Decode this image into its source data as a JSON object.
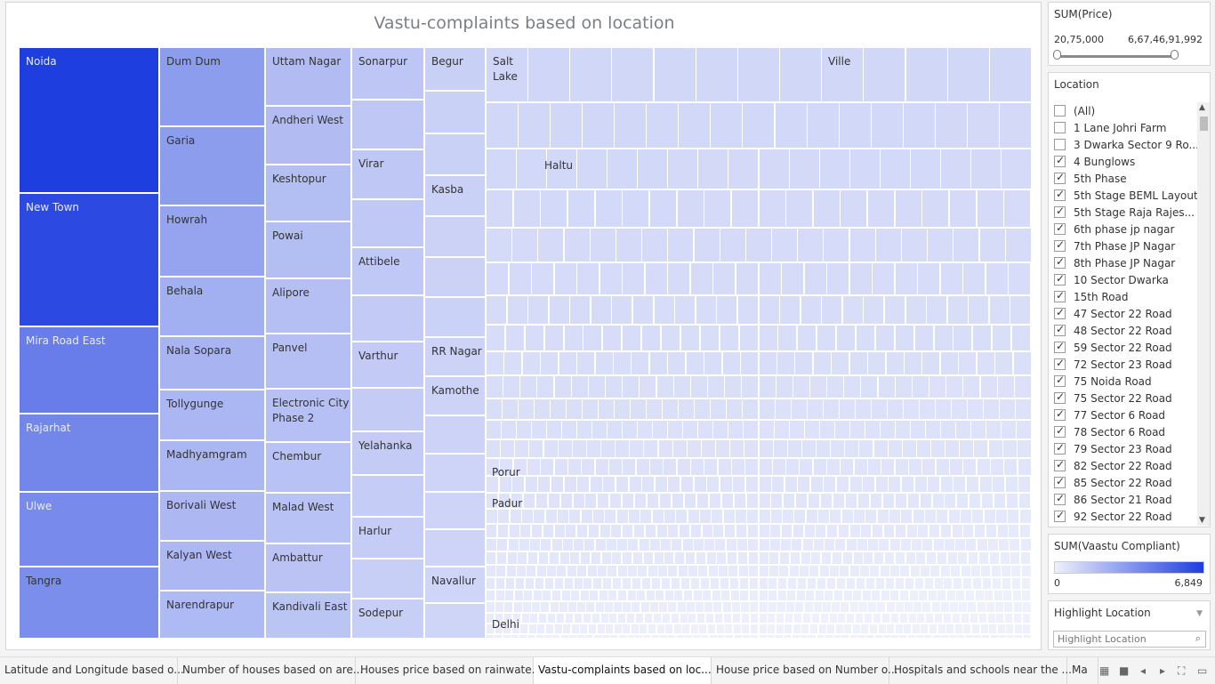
{
  "chart_data": {
    "type": "treemap",
    "title": "Vastu-complaints based on location",
    "color_measure": "SUM(Vaastu Compliant)",
    "color_range": [
      0,
      6849
    ],
    "colors": {
      "low": "#eef0fb",
      "high": "#1e3ee0"
    },
    "columns": [
      {
        "tiles": [
          {
            "name": "Noida",
            "value": 6849
          },
          {
            "name": "New Town",
            "value": 6300
          },
          {
            "name": "Mira Road East",
            "value": 4100
          },
          {
            "name": "Rajarhat",
            "value": 3700
          },
          {
            "name": "Ulwe",
            "value": 3500
          },
          {
            "name": "Tangra",
            "value": 3400
          }
        ]
      },
      {
        "tiles": [
          {
            "name": "Dum Dum",
            "value": 2800
          },
          {
            "name": "Garia",
            "value": 2800
          },
          {
            "name": "Howrah",
            "value": 2500
          },
          {
            "name": "Behala",
            "value": 2100
          },
          {
            "name": "Nala Sopara",
            "value": 1900
          },
          {
            "name": "Tollygunge",
            "value": 1800
          },
          {
            "name": "Madhyamgram",
            "value": 1800
          },
          {
            "name": "Borivali West",
            "value": 1750
          },
          {
            "name": "Kalyan West",
            "value": 1750
          },
          {
            "name": "Narendrapur",
            "value": 1700
          }
        ]
      },
      {
        "tiles": [
          {
            "name": "Uttam Nagar",
            "value": 1600
          },
          {
            "name": "Andheri West",
            "value": 1600
          },
          {
            "name": "Keshtopur",
            "value": 1550
          },
          {
            "name": "Powai",
            "value": 1550
          },
          {
            "name": "Alipore",
            "value": 1500
          },
          {
            "name": "Panvel",
            "value": 1500
          },
          {
            "name": "Electronic City Phase 2",
            "value": 1450
          },
          {
            "name": "Chembur",
            "value": 1400
          },
          {
            "name": "Malad West",
            "value": 1400
          },
          {
            "name": "Ambattur",
            "value": 1350
          },
          {
            "name": "Kandivali East",
            "value": 1300
          }
        ]
      },
      {
        "tiles": [
          {
            "name": "Sonarpur",
            "value": 1250
          },
          {
            "name": "",
            "value": 1200
          },
          {
            "name": "Virar",
            "value": 1200
          },
          {
            "name": "",
            "value": 1150
          },
          {
            "name": "Attibele",
            "value": 1150
          },
          {
            "name": "",
            "value": 1100
          },
          {
            "name": "Varthur",
            "value": 1100
          },
          {
            "name": "",
            "value": 1050
          },
          {
            "name": "Yelahanka",
            "value": 1050
          },
          {
            "name": "",
            "value": 1000
          },
          {
            "name": "Harlur",
            "value": 1000
          },
          {
            "name": "",
            "value": 950
          },
          {
            "name": "Sodepur",
            "value": 950
          }
        ]
      },
      {
        "tiles": [
          {
            "name": "Begur",
            "value": 900
          },
          {
            "name": "",
            "value": 880
          },
          {
            "name": "",
            "value": 870
          },
          {
            "name": "Kasba",
            "value": 860
          },
          {
            "name": "",
            "value": 850
          },
          {
            "name": "",
            "value": 840
          },
          {
            "name": "",
            "value": 830
          },
          {
            "name": "RR Nagar",
            "value": 820
          },
          {
            "name": "Kamothe",
            "value": 810
          },
          {
            "name": "",
            "value": 800
          },
          {
            "name": "",
            "value": 790
          },
          {
            "name": "",
            "value": 780
          },
          {
            "name": "",
            "value": 770
          },
          {
            "name": "Navallur",
            "value": 760
          },
          {
            "name": "",
            "value": 750
          }
        ]
      }
    ],
    "other_labels": [
      "Salt Lake",
      "Ville",
      "Haltu",
      "Porur",
      "Padur",
      "Delhi"
    ]
  },
  "filters": {
    "price": {
      "title": "SUM(Price)",
      "min": "20,75,000",
      "max": "6,67,46,91,992"
    },
    "location": {
      "title": "Location",
      "items": [
        {
          "label": "(All)",
          "checked": false
        },
        {
          "label": "1 Lane Johri Farm",
          "checked": false
        },
        {
          "label": "3 Dwarka Sector 9 Ro...",
          "checked": false
        },
        {
          "label": "4 Bunglows",
          "checked": true
        },
        {
          "label": "5th Phase",
          "checked": true
        },
        {
          "label": "5th Stage BEML Layout",
          "checked": true
        },
        {
          "label": "5th Stage Raja Rajes...",
          "checked": true
        },
        {
          "label": "6th phase jp nagar",
          "checked": true
        },
        {
          "label": "7th Phase JP Nagar",
          "checked": true
        },
        {
          "label": "8th Phase JP Nagar",
          "checked": true
        },
        {
          "label": "10 Sector Dwarka",
          "checked": true
        },
        {
          "label": "15th Road",
          "checked": true
        },
        {
          "label": "47 Sector 22 Road",
          "checked": true
        },
        {
          "label": "48 Sector 22 Road",
          "checked": true
        },
        {
          "label": "59 Sector 22 Road",
          "checked": true
        },
        {
          "label": "72 Sector 23 Road",
          "checked": true
        },
        {
          "label": "75 Noida Road",
          "checked": true
        },
        {
          "label": "75 Sector 22 Road",
          "checked": true
        },
        {
          "label": "77 Sector 6 Road",
          "checked": true
        },
        {
          "label": "78 Sector 6 Road",
          "checked": true
        },
        {
          "label": "79 Sector 23 Road",
          "checked": true
        },
        {
          "label": "82 Sector 22 Road",
          "checked": true
        },
        {
          "label": "85 Sector 22 Road",
          "checked": true
        },
        {
          "label": "86 Sector 21 Road",
          "checked": true
        },
        {
          "label": "92 Sector 22 Road",
          "checked": true
        }
      ]
    },
    "color_legend": {
      "title": "SUM(Vaastu Compliant)",
      "min": "0",
      "max": "6,849"
    },
    "highlight": {
      "title": "Highlight Location",
      "placeholder": "Highlight Location"
    }
  },
  "tabs": [
    {
      "label": "Latitude and Longitude based o...",
      "active": false
    },
    {
      "label": "Number of houses based on are...",
      "active": false
    },
    {
      "label": "Houses price based on rainwate...",
      "active": false
    },
    {
      "label": "Vastu-complaints based on loc...",
      "active": true
    },
    {
      "label": "House price based on Number o...",
      "active": false
    },
    {
      "label": "Hospitals and schools near the ...",
      "active": false
    },
    {
      "label": "Ma",
      "active": false
    }
  ],
  "nav_icons": [
    "sheet-grid-icon",
    "sheet-single-icon",
    "prev-sheet-icon",
    "next-sheet-icon",
    "fit-screen-icon",
    "present-icon"
  ]
}
